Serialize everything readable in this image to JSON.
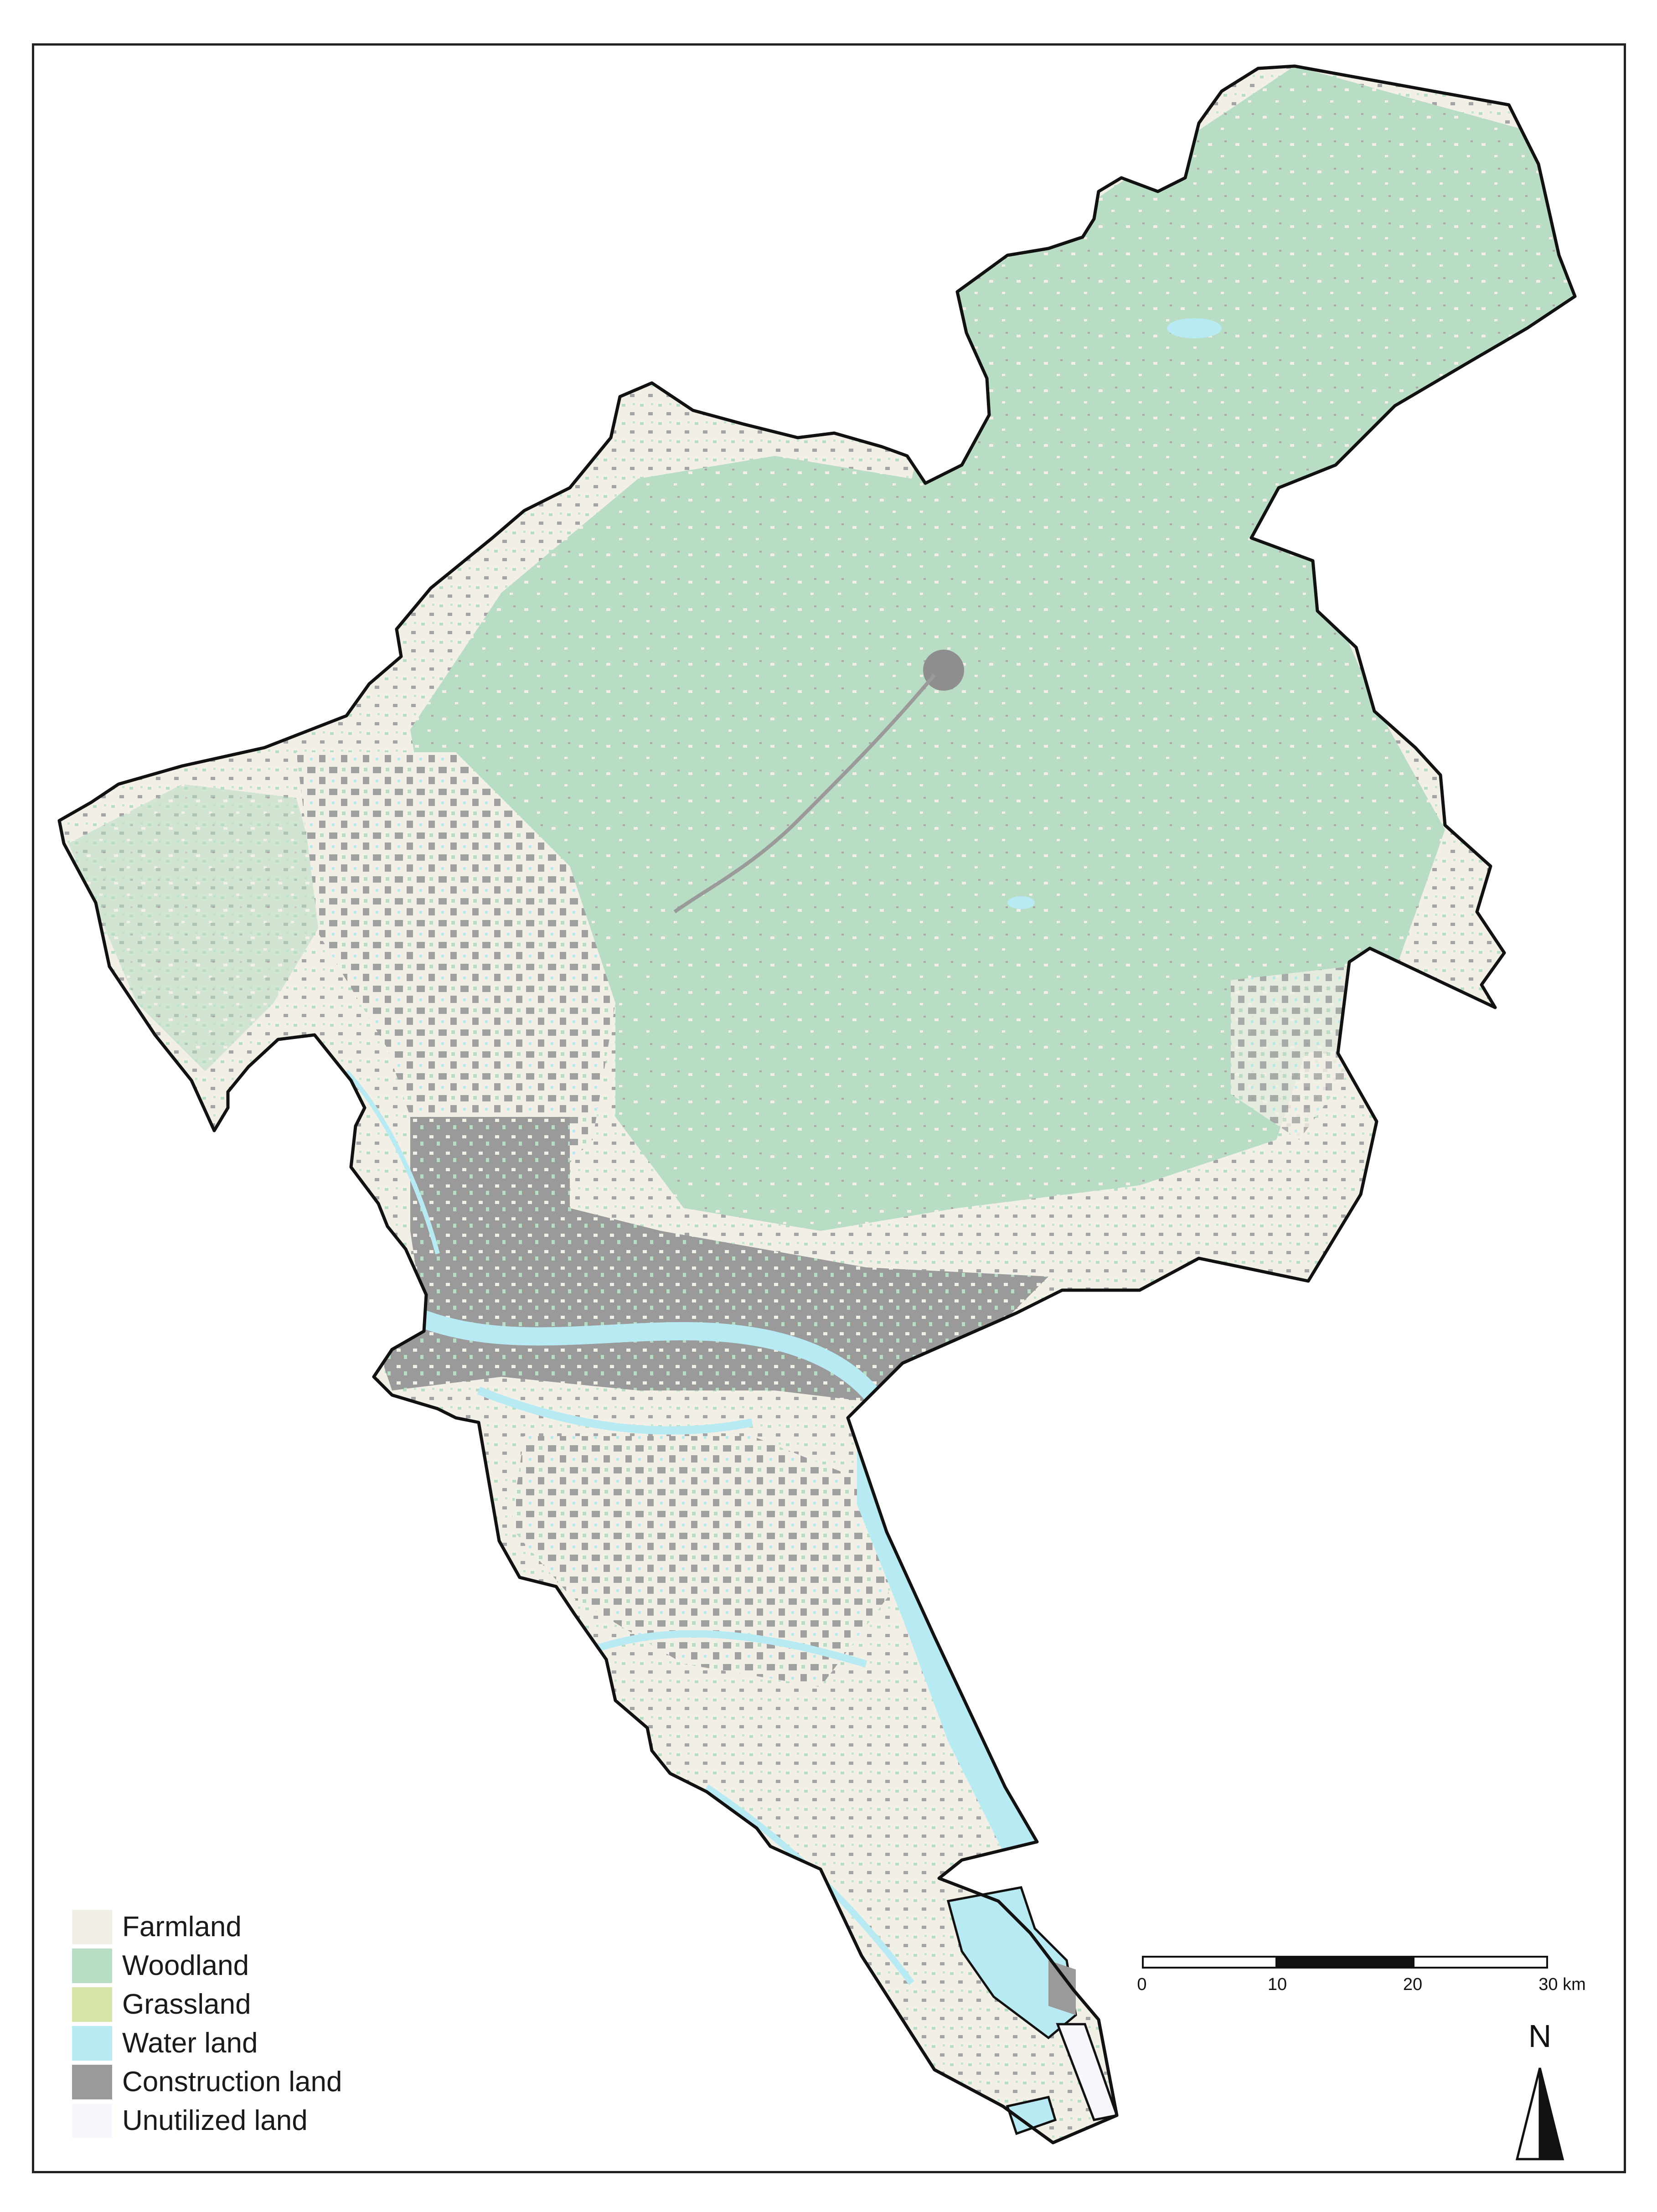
{
  "legend": {
    "items": [
      {
        "label": "Farmland",
        "color": "#f2efe6"
      },
      {
        "label": "Woodland",
        "color": "#b8dcc4"
      },
      {
        "label": "Grassland",
        "color": "#d6e6a8"
      },
      {
        "label": "Water land",
        "color": "#b8eaf4"
      },
      {
        "label": "Construction land",
        "color": "#9a9a9a"
      },
      {
        "label": "Unutilized land",
        "color": "#f6f6fc"
      }
    ]
  },
  "scalebar": {
    "ticks": [
      "0",
      "10",
      "20",
      "30 km"
    ]
  },
  "north_arrow": {
    "label": "N",
    "icon": "north-arrow-icon"
  },
  "map": {
    "boundary_color": "#111111"
  }
}
